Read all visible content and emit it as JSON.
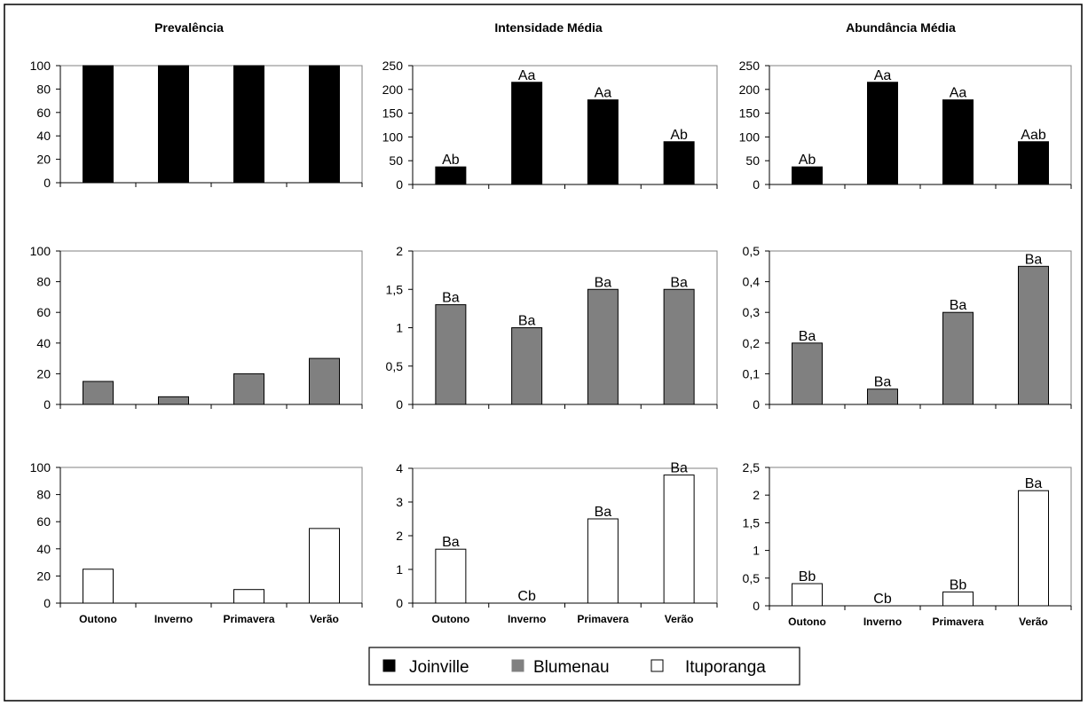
{
  "chart_data": [
    {
      "type": "bar",
      "column_title": "Prevalência",
      "series": "Joinville",
      "categories": [
        "Outono",
        "Inverno",
        "Primavera",
        "Verão"
      ],
      "values": [
        100,
        100,
        100,
        100
      ],
      "ylim": [
        0,
        100
      ],
      "ticks": [
        0,
        20,
        40,
        60,
        80,
        100
      ],
      "tick_labels": [
        "0",
        "20",
        "40",
        "60",
        "80",
        "100"
      ],
      "labels": [
        "",
        "",
        "",
        ""
      ]
    },
    {
      "type": "bar",
      "column_title": "Intensidade Média",
      "series": "Joinville",
      "categories": [
        "Outono",
        "Inverno",
        "Primavera",
        "Verão"
      ],
      "values": [
        37,
        215,
        178,
        90
      ],
      "ylim": [
        0,
        250
      ],
      "ticks": [
        0,
        50,
        100,
        150,
        200,
        250
      ],
      "tick_labels": [
        "0",
        "50",
        "100",
        "150",
        "200",
        "250"
      ],
      "labels": [
        "Ab",
        "Aa",
        "Aa",
        "Ab"
      ]
    },
    {
      "type": "bar",
      "column_title": "Abundância Média",
      "series": "Joinville",
      "categories": [
        "Outono",
        "Inverno",
        "Primavera",
        "Verão"
      ],
      "values": [
        37,
        215,
        178,
        90
      ],
      "ylim": [
        0,
        250
      ],
      "ticks": [
        0,
        50,
        100,
        150,
        200,
        250
      ],
      "tick_labels": [
        "0",
        "50",
        "100",
        "150",
        "200",
        "250"
      ],
      "labels": [
        "Ab",
        "Aa",
        "Aa",
        "Aab"
      ]
    },
    {
      "type": "bar",
      "series": "Blumenau",
      "categories": [
        "Outono",
        "Inverno",
        "Primavera",
        "Verão"
      ],
      "values": [
        15,
        5,
        20,
        30
      ],
      "ylim": [
        0,
        100
      ],
      "ticks": [
        0,
        20,
        40,
        60,
        80,
        100
      ],
      "tick_labels": [
        "0",
        "20",
        "40",
        "60",
        "80",
        "100"
      ],
      "labels": [
        "",
        "",
        "",
        ""
      ]
    },
    {
      "type": "bar",
      "series": "Blumenau",
      "categories": [
        "Outono",
        "Inverno",
        "Primavera",
        "Verão"
      ],
      "values": [
        1.3,
        1.0,
        1.5,
        1.5
      ],
      "ylim": [
        0,
        2
      ],
      "ticks": [
        0,
        0.5,
        1,
        1.5,
        2
      ],
      "tick_labels": [
        "0",
        "0,5",
        "1",
        "1,5",
        "2"
      ],
      "labels": [
        "Ba",
        "Ba",
        "Ba",
        "Ba"
      ]
    },
    {
      "type": "bar",
      "series": "Blumenau",
      "categories": [
        "Outono",
        "Inverno",
        "Primavera",
        "Verão"
      ],
      "values": [
        0.2,
        0.05,
        0.3,
        0.45
      ],
      "ylim": [
        0,
        0.5
      ],
      "ticks": [
        0,
        0.1,
        0.2,
        0.3,
        0.4,
        0.5
      ],
      "tick_labels": [
        "0",
        "0,1",
        "0,2",
        "0,3",
        "0,4",
        "0,5"
      ],
      "labels": [
        "Ba",
        "Ba",
        "Ba",
        "Ba"
      ]
    },
    {
      "type": "bar",
      "series": "Ituporanga",
      "categories": [
        "Outono",
        "Inverno",
        "Primavera",
        "Verão"
      ],
      "values": [
        25,
        0,
        10,
        55
      ],
      "ylim": [
        0,
        100
      ],
      "ticks": [
        0,
        20,
        40,
        60,
        80,
        100
      ],
      "tick_labels": [
        "0",
        "20",
        "40",
        "60",
        "80",
        "100"
      ],
      "labels": [
        "",
        "",
        "",
        ""
      ]
    },
    {
      "type": "bar",
      "series": "Ituporanga",
      "categories": [
        "Outono",
        "Inverno",
        "Primavera",
        "Verão"
      ],
      "values": [
        1.6,
        0,
        2.5,
        3.8
      ],
      "ylim": [
        0,
        4
      ],
      "ticks": [
        0,
        1,
        2,
        3,
        4
      ],
      "tick_labels": [
        "0",
        "1",
        "2",
        "3",
        "4"
      ],
      "labels": [
        "Ba",
        "Cb",
        "Ba",
        "Ba"
      ]
    },
    {
      "type": "bar",
      "series": "Ituporanga",
      "categories": [
        "Outono",
        "Inverno",
        "Primavera",
        "Verão"
      ],
      "values": [
        0.4,
        0,
        0.25,
        2.08
      ],
      "ylim": [
        0,
        2.5
      ],
      "ticks": [
        0,
        0.5,
        1,
        1.5,
        2,
        2.5
      ],
      "tick_labels": [
        "0",
        "0,5",
        "1",
        "1,5",
        "2",
        "2,5"
      ],
      "labels": [
        "Bb",
        "Cb",
        "Bb",
        "Ba"
      ]
    }
  ],
  "legend": {
    "placement": "bottom-center",
    "items": [
      {
        "name": "Joinville",
        "color": "#000000"
      },
      {
        "name": "Blumenau",
        "color": "#808080"
      },
      {
        "name": "Ituporanga",
        "color": "#ffffff"
      }
    ]
  },
  "colors": {
    "Joinville": "#000000",
    "Blumenau": "#808080",
    "Ituporanga": "#ffffff"
  }
}
